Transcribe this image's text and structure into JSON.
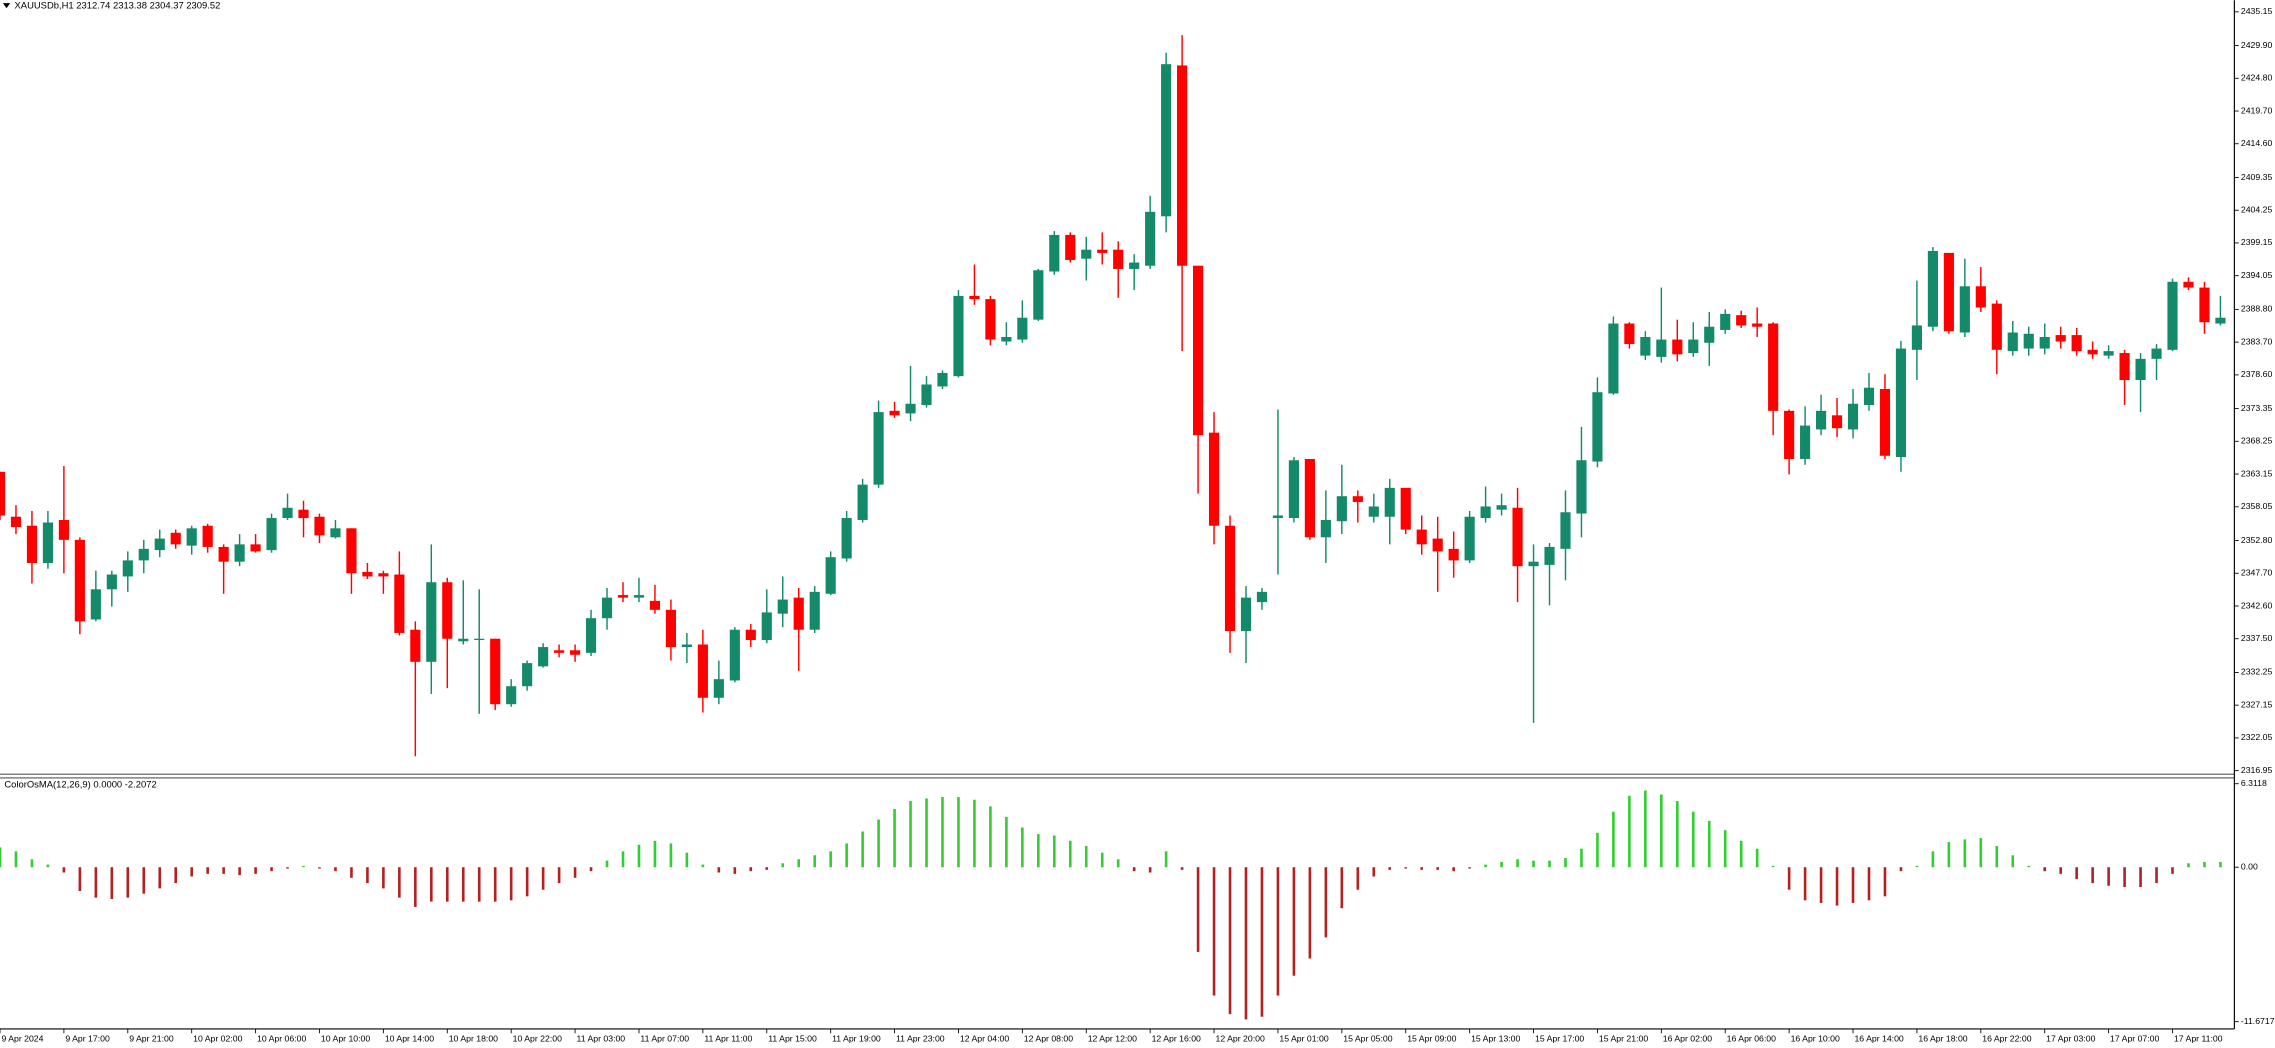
{
  "chart_data": [
    {
      "type": "candlestick",
      "title": "XAUUSDb,H1  2312.74 2313.38 2304.37 2309.52",
      "categories": [
        "9 Apr 2024",
        null,
        null,
        null,
        "9 Apr 17:00",
        null,
        null,
        null,
        "9 Apr 21:00",
        null,
        null,
        null,
        "10 Apr 02:00",
        null,
        null,
        null,
        "10 Apr 06:00",
        null,
        null,
        null,
        "10 Apr 10:00",
        null,
        null,
        null,
        "10 Apr 14:00",
        null,
        null,
        null,
        "10 Apr 18:00",
        null,
        null,
        null,
        "10 Apr 22:00",
        null,
        null,
        null,
        "11 Apr 03:00",
        null,
        null,
        null,
        "11 Apr 07:00",
        null,
        null,
        null,
        "11 Apr 11:00",
        null,
        null,
        null,
        "11 Apr 15:00",
        null,
        null,
        null,
        "11 Apr 19:00",
        null,
        null,
        null,
        "11 Apr 23:00",
        null,
        null,
        null,
        "12 Apr 04:00",
        null,
        null,
        null,
        "12 Apr 08:00",
        null,
        null,
        null,
        "12 Apr 12:00",
        null,
        null,
        null,
        "12 Apr 16:00",
        null,
        null,
        null,
        "12 Apr 20:00",
        null,
        null,
        null,
        "15 Apr 01:00",
        null,
        null,
        null,
        "15 Apr 05:00",
        null,
        null,
        null,
        "15 Apr 09:00",
        null,
        null,
        null,
        "15 Apr 13:00",
        null,
        null,
        null,
        "15 Apr 17:00",
        null,
        null,
        null,
        "15 Apr 21:00",
        null,
        null,
        null,
        "16 Apr 02:00",
        null,
        null,
        null,
        "16 Apr 06:00",
        null,
        null,
        null,
        "16 Apr 10:00",
        null,
        null,
        null,
        "16 Apr 14:00",
        null,
        null,
        null,
        "16 Apr 18:00",
        null,
        null,
        null,
        "16 Apr 22:00",
        null,
        null,
        null,
        "17 Apr 03:00",
        null,
        null,
        null,
        "17 Apr 07:00",
        null,
        null,
        null,
        "17 Apr 11:00",
        null,
        null,
        null
      ],
      "open": [
        2363.5,
        2356.5,
        2355.1,
        2349.3,
        2356.0,
        2352.9,
        2340.5,
        2345.2,
        2347.2,
        2349.7,
        2351.3,
        2354.0,
        2352.0,
        2355.1,
        2351.8,
        2349.5,
        2352.2,
        2351.3,
        2356.3,
        2357.6,
        2356.5,
        2353.3,
        2354.7,
        2347.9,
        2347.7,
        2347.5,
        2338.9,
        2333.9,
        2346.3,
        2337.1,
        2337.3,
        2337.5,
        2327.3,
        2330.1,
        2333.2,
        2335.7,
        2335.7,
        2335.3,
        2340.7,
        2344.3,
        2343.9,
        2343.4,
        2342.0,
        2336.2,
        2336.6,
        2328.3,
        2331.0,
        2338.9,
        2337.3,
        2341.4,
        2343.9,
        2338.9,
        2344.5,
        2350.0,
        2356.0,
        2361.5,
        2373.0,
        2372.6,
        2373.9,
        2376.8,
        2378.4,
        2390.9,
        2390.4,
        2383.8,
        2384.1,
        2387.2,
        2394.7,
        2400.4,
        2396.7,
        2398.1,
        2398.1,
        2395.1,
        2395.6,
        2403.3,
        2426.8,
        2395.6,
        2369.6,
        2355.1,
        2338.7,
        2343.2,
        2356.3,
        2356.3,
        2365.5,
        2353.3,
        2355.8,
        2359.7,
        2356.5,
        2356.5,
        2361.0,
        2354.5,
        2353.1,
        2351.5,
        2349.7,
        2356.3,
        2357.6,
        2357.9,
        2348.8,
        2349.0,
        2351.5,
        2357.0,
        2365.1,
        2375.7,
        2386.6,
        2381.6,
        2381.4,
        2384.1,
        2382.0,
        2383.6,
        2385.6,
        2387.9,
        2386.6,
        2386.6,
        2373.0,
        2365.5,
        2370.1,
        2372.3,
        2370.1,
        2373.9,
        2376.4,
        2365.8,
        2382.5,
        2386.1,
        2397.6,
        2385.2,
        2392.4,
        2389.7,
        2382.3,
        2382.7,
        2382.7,
        2384.8,
        2384.8,
        2382.5,
        2381.6,
        2382.0,
        2377.8,
        2381.1,
        2382.5,
        2393.1,
        2392.2,
        2386.6
      ],
      "high": [
        2363.5,
        2358.3,
        2357.4,
        2357.4,
        2364.4,
        2353.3,
        2348.1,
        2348.1,
        2351.1,
        2352.9,
        2354.5,
        2354.5,
        2355.1,
        2355.4,
        2352.2,
        2353.8,
        2353.8,
        2357.0,
        2360.1,
        2359.0,
        2357.0,
        2356.0,
        2354.7,
        2349.3,
        2348.1,
        2351.1,
        2340.2,
        2352.2,
        2347.0,
        2346.6,
        2345.2,
        2337.5,
        2331.2,
        2334.1,
        2336.8,
        2336.6,
        2336.6,
        2342.0,
        2345.4,
        2346.3,
        2347.0,
        2345.9,
        2343.6,
        2338.4,
        2338.9,
        2334.1,
        2339.3,
        2339.8,
        2345.2,
        2347.2,
        2345.4,
        2345.7,
        2351.1,
        2357.4,
        2362.4,
        2374.6,
        2374.4,
        2380.0,
        2378.4,
        2379.3,
        2391.8,
        2395.8,
        2390.9,
        2386.8,
        2390.2,
        2395.1,
        2401.0,
        2400.8,
        2400.1,
        2400.8,
        2399.4,
        2397.4,
        2406.5,
        2428.8,
        2431.5,
        2395.6,
        2372.8,
        2356.7,
        2345.7,
        2345.4,
        2373.2,
        2365.8,
        2365.5,
        2360.6,
        2364.6,
        2360.6,
        2360.1,
        2362.4,
        2361.0,
        2356.7,
        2356.5,
        2354.2,
        2357.4,
        2361.2,
        2360.1,
        2361.0,
        2352.2,
        2352.4,
        2360.6,
        2370.5,
        2378.2,
        2387.7,
        2386.8,
        2385.4,
        2392.2,
        2387.2,
        2386.8,
        2388.4,
        2388.8,
        2388.6,
        2389.1,
        2386.8,
        2373.2,
        2373.7,
        2375.5,
        2375.0,
        2376.4,
        2378.9,
        2378.7,
        2383.9,
        2393.3,
        2398.5,
        2397.6,
        2396.7,
        2395.4,
        2390.2,
        2387.0,
        2386.1,
        2386.6,
        2386.1,
        2385.9,
        2383.8,
        2383.2,
        2382.5,
        2382.0,
        2383.4,
        2393.6,
        2393.8,
        2393.1,
        2390.9
      ],
      "low": [
        2356.0,
        2353.8,
        2346.1,
        2348.4,
        2347.7,
        2338.2,
        2340.2,
        2342.5,
        2344.8,
        2347.7,
        2350.2,
        2351.5,
        2350.6,
        2350.9,
        2344.5,
        2348.8,
        2350.9,
        2350.9,
        2356.0,
        2353.3,
        2352.4,
        2353.1,
        2344.5,
        2346.8,
        2344.5,
        2338.0,
        2319.2,
        2328.9,
        2329.8,
        2336.6,
        2325.8,
        2326.4,
        2326.9,
        2329.4,
        2333.0,
        2334.6,
        2333.9,
        2334.8,
        2338.9,
        2343.2,
        2343.2,
        2341.4,
        2334.1,
        2333.7,
        2326.0,
        2327.3,
        2330.7,
        2336.2,
        2336.8,
        2339.3,
        2332.5,
        2338.4,
        2344.3,
        2349.5,
        2355.6,
        2361.0,
        2371.9,
        2371.4,
        2373.5,
        2376.4,
        2378.2,
        2389.5,
        2383.2,
        2383.2,
        2383.6,
        2387.0,
        2394.2,
        2396.1,
        2393.3,
        2395.8,
        2390.6,
        2391.8,
        2395.1,
        2400.8,
        2382.3,
        2360.1,
        2352.2,
        2335.3,
        2333.7,
        2342.0,
        2347.5,
        2355.6,
        2352.9,
        2349.3,
        2353.8,
        2355.6,
        2355.6,
        2352.2,
        2353.8,
        2350.6,
        2344.8,
        2347.0,
        2349.3,
        2355.6,
        2356.7,
        2343.2,
        2324.4,
        2342.7,
        2346.6,
        2353.3,
        2364.2,
        2375.5,
        2382.7,
        2380.9,
        2380.5,
        2380.7,
        2381.4,
        2380.0,
        2385.0,
        2385.9,
        2384.5,
        2369.2,
        2363.1,
        2364.6,
        2369.2,
        2368.9,
        2368.7,
        2373.0,
        2365.5,
        2363.5,
        2377.8,
        2385.4,
        2385.0,
        2384.5,
        2388.4,
        2378.7,
        2381.6,
        2381.6,
        2381.8,
        2382.7,
        2381.6,
        2381.1,
        2381.1,
        2373.9,
        2372.8,
        2377.8,
        2382.3,
        2391.8,
        2385.0,
        2386.3
      ],
      "close": [
        2356.7,
        2354.9,
        2349.3,
        2355.6,
        2352.9,
        2340.2,
        2345.2,
        2347.5,
        2349.7,
        2351.5,
        2353.1,
        2352.2,
        2354.7,
        2351.8,
        2349.5,
        2352.2,
        2351.1,
        2356.3,
        2357.9,
        2356.3,
        2353.6,
        2354.7,
        2347.7,
        2347.2,
        2347.2,
        2338.4,
        2333.9,
        2346.3,
        2337.5,
        2337.5,
        2337.5,
        2327.3,
        2330.1,
        2333.7,
        2336.2,
        2335.3,
        2335.0,
        2340.7,
        2343.9,
        2343.9,
        2344.3,
        2342.0,
        2336.2,
        2336.6,
        2328.3,
        2331.2,
        2338.9,
        2337.3,
        2341.6,
        2343.6,
        2338.9,
        2344.8,
        2350.2,
        2356.3,
        2361.5,
        2372.8,
        2372.3,
        2374.1,
        2377.1,
        2378.9,
        2390.9,
        2390.4,
        2384.1,
        2384.5,
        2387.5,
        2394.9,
        2400.4,
        2396.5,
        2398.1,
        2397.6,
        2395.1,
        2396.1,
        2404.0,
        2427.0,
        2395.6,
        2369.2,
        2355.1,
        2338.7,
        2343.9,
        2344.8,
        2356.7,
        2365.3,
        2353.3,
        2356.0,
        2359.7,
        2358.8,
        2358.1,
        2361.0,
        2354.5,
        2352.2,
        2351.1,
        2349.7,
        2356.5,
        2358.1,
        2358.3,
        2348.8,
        2349.5,
        2351.8,
        2357.2,
        2365.3,
        2375.9,
        2386.6,
        2383.4,
        2384.5,
        2384.1,
        2381.8,
        2384.1,
        2386.1,
        2388.1,
        2386.3,
        2386.1,
        2373.0,
        2365.5,
        2370.7,
        2373.0,
        2370.3,
        2374.1,
        2376.6,
        2366.0,
        2382.7,
        2386.3,
        2397.9,
        2385.4,
        2392.4,
        2389.1,
        2382.5,
        2385.2,
        2385.0,
        2384.5,
        2383.8,
        2382.3,
        2381.8,
        2382.3,
        2377.8,
        2381.1,
        2382.7,
        2393.1,
        2392.2,
        2386.8,
        2387.5
      ],
      "up_color": "#158a6b",
      "down_color": "#ff0000",
      "ylim": [
        2316.95,
        2435.15
      ],
      "yticks": [
        2435.15,
        {
          "value": 2429.9,
          "label": "2429.90"
        },
        {
          "value": 2424.8,
          "label": "2424.80"
        },
        {
          "value": 2419.7,
          "label": "2419.70"
        },
        {
          "value": 2414.6,
          "label": "2414.60"
        },
        2409.35,
        2404.25,
        2399.15,
        2394.05,
        {
          "value": 2388.8,
          "label": "2388.80"
        },
        {
          "value": 2383.7,
          "label": "2383.70"
        },
        {
          "value": 2378.6,
          "label": "2378.60"
        },
        2373.35,
        2368.25,
        2363.15,
        2358.05,
        {
          "value": 2352.8,
          "label": "2352.80"
        },
        {
          "value": 2347.7,
          "label": "2347.70"
        },
        {
          "value": 2342.6,
          "label": "2342.60"
        },
        {
          "value": 2337.5,
          "label": "2337.50"
        },
        2332.25,
        2327.15,
        2322.05,
        2316.95
      ]
    },
    {
      "type": "histogram",
      "title": "ColorOsMA(12,26,9) 0.0000 -2.2072",
      "values": [
        1.5,
        1.2,
        0.6,
        0.2,
        -0.4,
        -1.8,
        -2.3,
        -2.4,
        -2.3,
        -2.0,
        -1.6,
        -1.2,
        -0.7,
        -0.5,
        -0.5,
        -0.6,
        -0.5,
        -0.3,
        -0.1,
        0.1,
        -0.1,
        -0.3,
        -0.8,
        -1.2,
        -1.6,
        -2.3,
        -3.0,
        -2.6,
        -2.6,
        -2.6,
        -2.6,
        -2.6,
        -2.5,
        -2.2,
        -1.7,
        -1.2,
        -0.8,
        -0.3,
        0.5,
        1.2,
        1.7,
        2.0,
        1.8,
        1.1,
        0.2,
        -0.4,
        -0.5,
        -0.3,
        -0.2,
        0.3,
        0.6,
        0.9,
        1.2,
        1.8,
        2.7,
        3.6,
        4.4,
        5.0,
        5.2,
        5.3,
        5.3,
        5.1,
        4.6,
        3.8,
        3.0,
        2.5,
        2.4,
        2.0,
        1.6,
        1.1,
        0.6,
        -0.3,
        -0.4,
        1.2,
        -0.2,
        -6.4,
        -9.7,
        -11.1,
        -11.5,
        -11.3,
        -9.7,
        -8.2,
        -6.9,
        -5.3,
        -3.1,
        -1.7,
        -0.7,
        -0.2,
        -0.1,
        -0.2,
        -0.2,
        -0.3,
        -0.1,
        0.2,
        0.4,
        0.6,
        0.5,
        0.5,
        0.7,
        1.4,
        2.6,
        4.2,
        5.4,
        5.8,
        5.5,
        5.0,
        4.2,
        3.5,
        2.8,
        2.0,
        1.4,
        0.1,
        -1.7,
        -2.5,
        -2.7,
        -2.9,
        -2.7,
        -2.5,
        -2.2,
        -0.3,
        0.1,
        1.2,
        1.9,
        2.1,
        2.2,
        1.6,
        0.9,
        0.1,
        -0.3,
        -0.5,
        -0.9,
        -1.2,
        -1.4,
        -1.5,
        -1.5,
        -1.2,
        -0.5,
        0.3,
        0.4,
        0.4
      ],
      "up_color": "#32cd32",
      "down_color": "#b22222",
      "ylim": [
        -11.6717,
        6.3118
      ],
      "yticks": [
        6.3118,
        {
          "value": 0,
          "label": "0.00"
        },
        -11.6717
      ]
    }
  ]
}
